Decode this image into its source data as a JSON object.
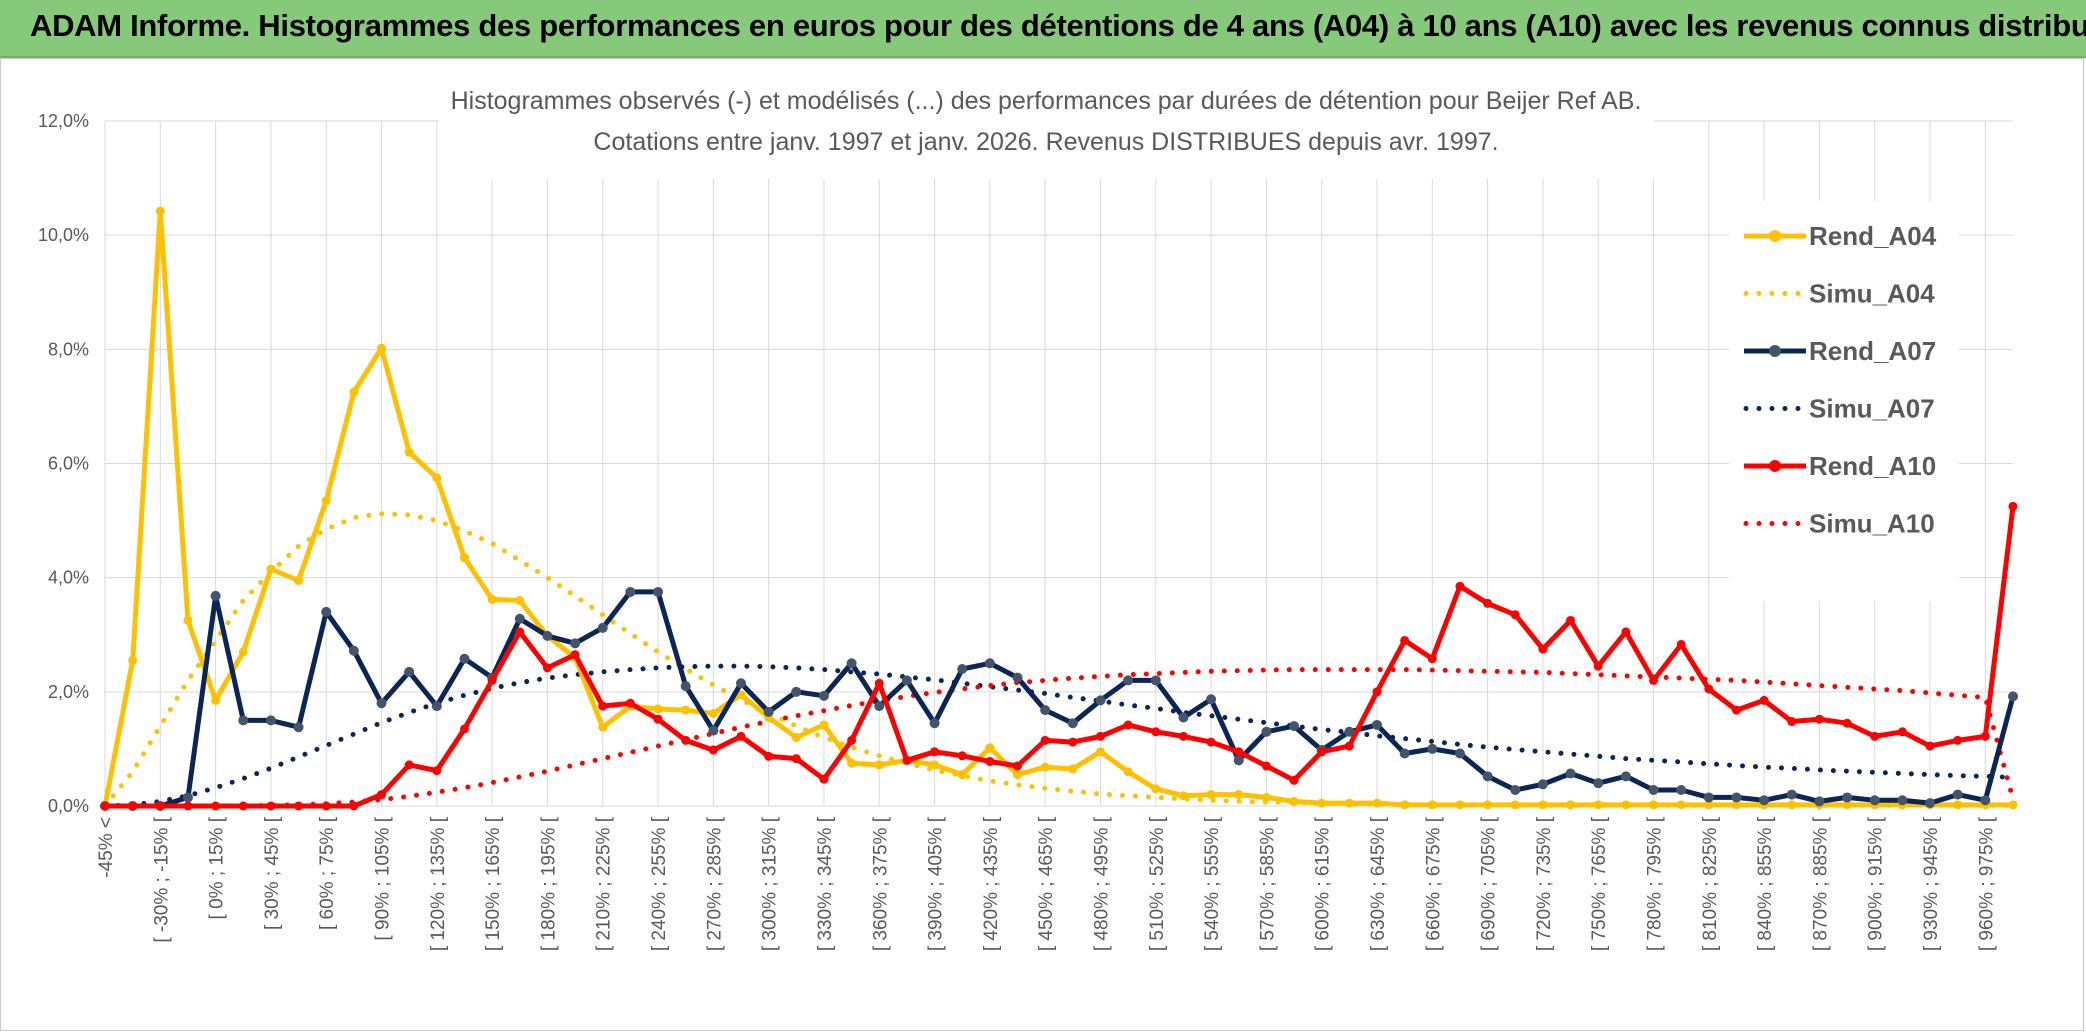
{
  "header": {
    "title": "ADAM Informe. Histogrammes des performances en euros pour des détentions de 4 ans (A04) à 10 ans (A10) avec les revenus connus distribués"
  },
  "colors": {
    "header_bg": "#86c97a",
    "a04": "#ffc000",
    "a07": "#0b2557",
    "a10": "#ff0000",
    "grid": "#d9d9d9",
    "text": "#595959"
  },
  "chart_data": {
    "type": "line",
    "title_line1": "Histogrammes observés (-) et modélisés (...) des performances par durées de détention pour Beijer Ref AB.",
    "title_line2": "Cotations entre janv. 1997 et janv. 2026. Revenus DISTRIBUES depuis avr. 1997.",
    "ylim": [
      0,
      12
    ],
    "y_ticks": [
      "0,0%",
      "2,0%",
      "4,0%",
      "6,0%",
      "8,0%",
      "10,0%",
      "12,0%"
    ],
    "y_tick_values": [
      0,
      2,
      4,
      6,
      8,
      10,
      12
    ],
    "x_tick_labels": [
      "-45% <",
      "[ -30% ; -15% [",
      "[ 0% ; 15% [",
      "[ 30% ; 45% [",
      "[ 60% ; 75% [",
      "[ 90% ; 105% [",
      "[ 120% ; 135% [",
      "[ 150% ; 165% [",
      "[ 180% ; 195% [",
      "[ 210% ; 225% [",
      "[ 240% ; 255% [",
      "[ 270% ; 285% [",
      "[ 300% ; 315% [",
      "[ 330% ; 345% [",
      "[ 360% ; 375% [",
      "[ 390% ; 405% [",
      "[ 420% ; 435% [",
      "[ 450% ; 465% [",
      "[ 480% ; 495% [",
      "[ 510% ; 525% [",
      "[ 540% ; 555% [",
      "[ 570% ; 585% [",
      "[ 600% ; 615% [",
      "[ 630% ; 645% [",
      "[ 660% ; 675% [",
      "[ 690% ; 705% [",
      "[ 720% ; 735% [",
      "[ 750% ; 765% [",
      "[ 780% ; 795% [",
      "[ 810% ; 825% [",
      "[ 840% ; 855% [",
      "[ 870% ; 885% [",
      "[ 900% ; 915% [",
      "[ 930% ; 945% [",
      "[ 960% ; 975% ["
    ],
    "n_points": 70,
    "series": [
      {
        "name": "Rend_A04",
        "kind": "observed",
        "values": [
          0.0,
          2.55,
          10.42,
          3.25,
          1.85,
          2.7,
          4.15,
          3.95,
          5.35,
          7.25,
          8.02,
          6.2,
          5.75,
          4.35,
          3.62,
          3.6,
          2.98,
          2.6,
          1.38,
          1.75,
          1.7,
          1.68,
          1.62,
          1.95,
          1.55,
          1.2,
          1.42,
          0.75,
          0.72,
          0.8,
          0.72,
          0.55,
          1.02,
          0.55,
          0.68,
          0.65,
          0.95,
          0.6,
          0.3,
          0.18,
          0.2,
          0.2,
          0.15,
          0.08,
          0.05,
          0.05,
          0.05,
          0.02,
          0.02,
          0.02,
          0.02,
          0.02,
          0.02,
          0.02,
          0.02,
          0.02,
          0.02,
          0.02,
          0.02,
          0.02,
          0.02,
          0.02,
          0.02,
          0.02,
          0.02,
          0.02,
          0.02,
          0.02,
          0.02,
          0.02
        ]
      },
      {
        "name": "Simu_A04",
        "kind": "model",
        "values": [
          0.0,
          0.6,
          1.4,
          2.2,
          2.9,
          3.6,
          4.1,
          4.55,
          4.85,
          5.05,
          5.12,
          5.1,
          5.0,
          4.82,
          4.6,
          4.3,
          4.0,
          3.68,
          3.35,
          3.02,
          2.7,
          2.4,
          2.12,
          1.86,
          1.62,
          1.4,
          1.2,
          1.03,
          0.88,
          0.75,
          0.63,
          0.53,
          0.44,
          0.37,
          0.31,
          0.26,
          0.21,
          0.18,
          0.15,
          0.12,
          0.1,
          0.08,
          0.07,
          0.06,
          0.05,
          0.04,
          0.03,
          0.03,
          0.02,
          0.02,
          0.02,
          0.01,
          0.01,
          0.01,
          0.01,
          0.01,
          0.01,
          0.01,
          0.01,
          0.01,
          0.01,
          0.01,
          0.01,
          0.01,
          0.01,
          0.01,
          0.01,
          0.01,
          0.01,
          0.01
        ]
      },
      {
        "name": "Rend_A07",
        "kind": "observed",
        "values": [
          0.0,
          0.0,
          0.0,
          0.15,
          3.68,
          1.5,
          1.5,
          1.38,
          3.4,
          2.72,
          1.8,
          2.35,
          1.75,
          2.58,
          2.25,
          3.28,
          2.98,
          2.85,
          3.12,
          3.75,
          3.75,
          2.1,
          1.32,
          2.15,
          1.65,
          2.0,
          1.93,
          2.5,
          1.75,
          2.2,
          1.45,
          2.4,
          2.5,
          2.25,
          1.68,
          1.45,
          1.85,
          2.2,
          2.2,
          1.55,
          1.87,
          0.8,
          1.3,
          1.4,
          0.98,
          1.3,
          1.42,
          0.92,
          1.0,
          0.92,
          0.52,
          0.28,
          0.38,
          0.57,
          0.4,
          0.52,
          0.28,
          0.28,
          0.15,
          0.15,
          0.1,
          0.2,
          0.08,
          0.15,
          0.1,
          0.1,
          0.05,
          0.2,
          0.1,
          1.92
        ]
      },
      {
        "name": "Simu_A07",
        "kind": "model",
        "values": [
          0.0,
          0.02,
          0.08,
          0.18,
          0.32,
          0.48,
          0.66,
          0.86,
          1.06,
          1.26,
          1.46,
          1.64,
          1.8,
          1.94,
          2.06,
          2.16,
          2.24,
          2.3,
          2.35,
          2.39,
          2.42,
          2.44,
          2.45,
          2.45,
          2.44,
          2.42,
          2.39,
          2.35,
          2.31,
          2.26,
          2.21,
          2.15,
          2.09,
          2.03,
          1.97,
          1.9,
          1.84,
          1.77,
          1.71,
          1.64,
          1.58,
          1.52,
          1.46,
          1.4,
          1.34,
          1.29,
          1.23,
          1.18,
          1.13,
          1.08,
          1.03,
          0.99,
          0.95,
          0.91,
          0.87,
          0.83,
          0.8,
          0.77,
          0.74,
          0.71,
          0.68,
          0.66,
          0.63,
          0.61,
          0.59,
          0.57,
          0.55,
          0.53,
          0.52,
          0.5
        ]
      },
      {
        "name": "Rend_A10",
        "kind": "observed",
        "values": [
          0.0,
          0.0,
          0.0,
          0.0,
          0.0,
          0.0,
          0.0,
          0.0,
          0.0,
          0.0,
          0.2,
          0.72,
          0.62,
          1.35,
          2.2,
          3.05,
          2.42,
          2.65,
          1.75,
          1.8,
          1.52,
          1.15,
          0.98,
          1.22,
          0.87,
          0.83,
          0.47,
          1.15,
          2.15,
          0.8,
          0.95,
          0.88,
          0.78,
          0.7,
          1.15,
          1.12,
          1.22,
          1.42,
          1.3,
          1.22,
          1.12,
          0.95,
          0.7,
          0.45,
          0.95,
          1.05,
          2.0,
          2.9,
          2.58,
          3.85,
          3.55,
          3.35,
          2.75,
          3.25,
          2.45,
          3.05,
          2.2,
          2.83,
          2.05,
          1.68,
          1.85,
          1.48,
          1.52,
          1.45,
          1.22,
          1.3,
          1.05,
          1.15,
          1.22,
          5.25
        ]
      },
      {
        "name": "Simu_A10",
        "kind": "model",
        "values": [
          0.0,
          0.0,
          0.0,
          0.0,
          0.0,
          0.0,
          0.01,
          0.02,
          0.04,
          0.07,
          0.11,
          0.17,
          0.24,
          0.32,
          0.41,
          0.51,
          0.61,
          0.72,
          0.83,
          0.94,
          1.05,
          1.16,
          1.27,
          1.38,
          1.48,
          1.58,
          1.67,
          1.76,
          1.84,
          1.92,
          1.99,
          2.05,
          2.11,
          2.16,
          2.2,
          2.24,
          2.27,
          2.3,
          2.32,
          2.34,
          2.36,
          2.37,
          2.38,
          2.39,
          2.39,
          2.39,
          2.39,
          2.39,
          2.38,
          2.37,
          2.36,
          2.35,
          2.34,
          2.32,
          2.3,
          2.28,
          2.26,
          2.24,
          2.22,
          2.2,
          2.17,
          2.14,
          2.11,
          2.08,
          2.05,
          2.02,
          1.98,
          1.94,
          1.9,
          0.12
        ]
      }
    ],
    "legend": [
      "Rend_A04",
      "Simu_A04",
      "Rend_A07",
      "Simu_A07",
      "Rend_A10",
      "Simu_A10"
    ],
    "legend_position": "right"
  }
}
